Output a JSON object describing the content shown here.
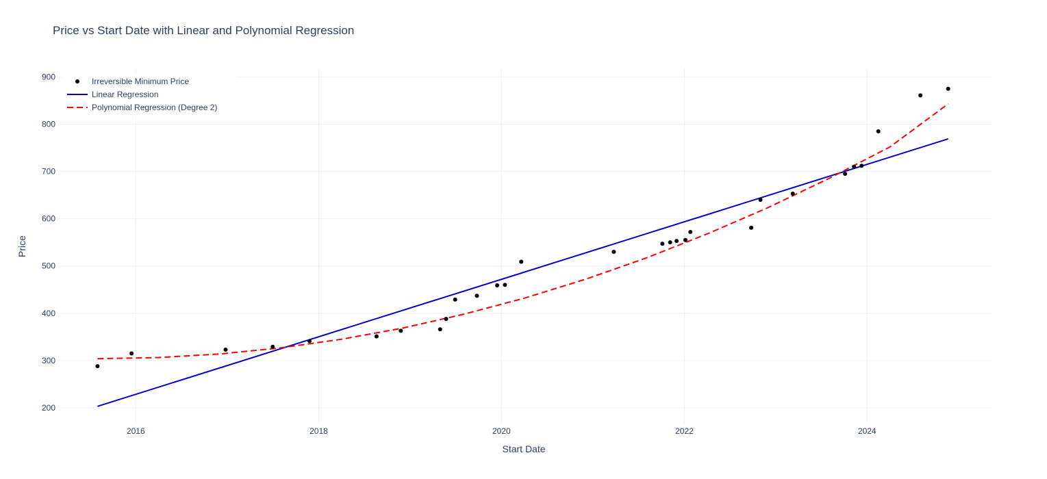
{
  "chart_data": {
    "type": "scatter",
    "title": "Price vs Start Date with Linear and Polynomial Regression",
    "xlabel": "Start Date",
    "ylabel": "Price",
    "x_type": "date",
    "xlim": [
      "2015-02-25",
      "2025-05-15"
    ],
    "ylim": [
      168,
      918
    ],
    "x_ticks": [
      {
        "date": "2016-01-01",
        "label": "2016"
      },
      {
        "date": "2018-01-01",
        "label": "2018"
      },
      {
        "date": "2020-01-01",
        "label": "2020"
      },
      {
        "date": "2022-01-01",
        "label": "2022"
      },
      {
        "date": "2024-01-01",
        "label": "2024"
      }
    ],
    "y_ticks": [
      200,
      300,
      400,
      500,
      600,
      700,
      800,
      900
    ],
    "grid": true,
    "legend_position": "top-left",
    "series": [
      {
        "name": "Irreversible Minimum Price",
        "type": "markers",
        "color": "#000000",
        "points": [
          {
            "x": "2015-08-01",
            "y": 288
          },
          {
            "x": "2015-12-15",
            "y": 315
          },
          {
            "x": "2016-12-25",
            "y": 323
          },
          {
            "x": "2017-07-01",
            "y": 329
          },
          {
            "x": "2017-11-25",
            "y": 341
          },
          {
            "x": "2018-08-20",
            "y": 351
          },
          {
            "x": "2018-11-25",
            "y": 363
          },
          {
            "x": "2019-05-01",
            "y": 366
          },
          {
            "x": "2019-05-25",
            "y": 388
          },
          {
            "x": "2019-06-30",
            "y": 429
          },
          {
            "x": "2019-09-25",
            "y": 437
          },
          {
            "x": "2019-12-15",
            "y": 459
          },
          {
            "x": "2020-01-15",
            "y": 460
          },
          {
            "x": "2020-03-20",
            "y": 509
          },
          {
            "x": "2021-03-25",
            "y": 530
          },
          {
            "x": "2021-10-05",
            "y": 547
          },
          {
            "x": "2021-11-05",
            "y": 550
          },
          {
            "x": "2021-12-01",
            "y": 553
          },
          {
            "x": "2022-01-05",
            "y": 555
          },
          {
            "x": "2022-01-25",
            "y": 572
          },
          {
            "x": "2022-09-25",
            "y": 581
          },
          {
            "x": "2022-11-01",
            "y": 640
          },
          {
            "x": "2023-03-10",
            "y": 653
          },
          {
            "x": "2023-10-05",
            "y": 695
          },
          {
            "x": "2023-11-10",
            "y": 710
          },
          {
            "x": "2023-12-10",
            "y": 712
          },
          {
            "x": "2024-02-15",
            "y": 785
          },
          {
            "x": "2024-08-01",
            "y": 861
          },
          {
            "x": "2024-11-20",
            "y": 875
          }
        ]
      },
      {
        "name": "Linear Regression",
        "type": "line",
        "color": "#0000cd",
        "dash": "solid",
        "points": [
          {
            "x": "2015-08-01",
            "y": 203
          },
          {
            "x": "2024-11-20",
            "y": 769
          }
        ]
      },
      {
        "name": "Polynomial Regression (Degree 2)",
        "type": "line",
        "color": "#ff0000",
        "dash": "dash",
        "points": [
          {
            "x": "2015-08-01",
            "y": 303.8
          },
          {
            "x": "2016-04-01",
            "y": 306.3
          },
          {
            "x": "2016-12-01",
            "y": 313.8
          },
          {
            "x": "2017-08-01",
            "y": 326.7
          },
          {
            "x": "2018-04-01",
            "y": 345.0
          },
          {
            "x": "2018-12-01",
            "y": 368.4
          },
          {
            "x": "2019-08-01",
            "y": 397.6
          },
          {
            "x": "2020-04-01",
            "y": 431.8
          },
          {
            "x": "2020-12-01",
            "y": 471.7
          },
          {
            "x": "2021-08-01",
            "y": 516.8
          },
          {
            "x": "2022-04-01",
            "y": 567.6
          },
          {
            "x": "2022-12-01",
            "y": 623.3
          },
          {
            "x": "2023-08-01",
            "y": 685.1
          },
          {
            "x": "2024-04-01",
            "y": 751.8
          },
          {
            "x": "2024-11-20",
            "y": 843.0
          }
        ]
      }
    ]
  }
}
